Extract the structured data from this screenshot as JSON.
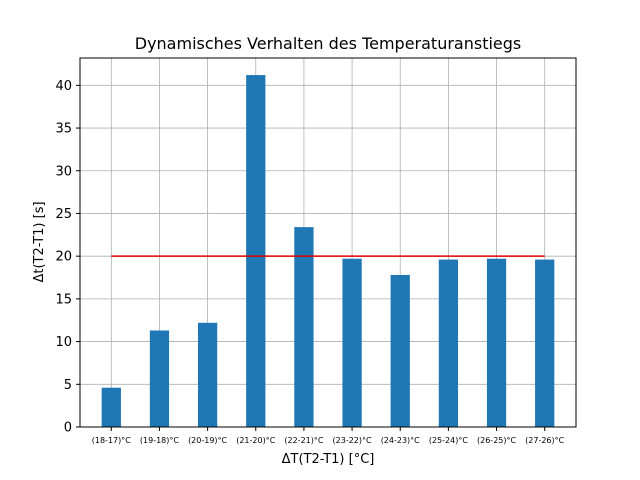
{
  "chart_data": {
    "type": "bar",
    "title": "Dynamisches Verhalten des Temperaturanstiegs",
    "xlabel": "ΔT(T2-T1) [°C]",
    "ylabel": "Δt(T2-T1) [s]",
    "categories": [
      "(18-17)°C",
      "(19-18)°C",
      "(20-19)°C",
      "(21-20)°C",
      "(22-21)°C",
      "(23-22)°C",
      "(24-23)°C",
      "(25-24)°C",
      "(26-25)°C",
      "(27-26)°C"
    ],
    "values": [
      4.6,
      11.3,
      12.2,
      41.2,
      23.4,
      19.7,
      17.8,
      19.6,
      19.7,
      19.6
    ],
    "reference_line": {
      "y": 20,
      "color": "#e00000"
    },
    "ylim": [
      0,
      43.2
    ],
    "yticks": [
      0,
      5,
      10,
      15,
      20,
      25,
      30,
      35,
      40
    ],
    "grid": true,
    "bar_color": "#1f77b4"
  }
}
